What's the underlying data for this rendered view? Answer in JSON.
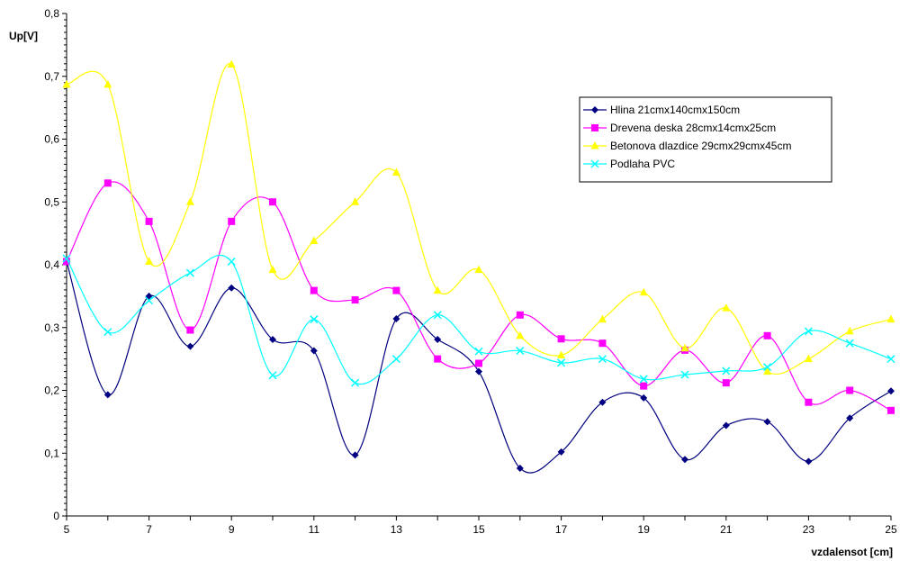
{
  "chart_data": {
    "type": "line",
    "smoothed": true,
    "xlabel": "vzdalensot [cm]",
    "ylabel": "Up[V]",
    "xlim": [
      5,
      25
    ],
    "ylim": [
      0,
      0.8
    ],
    "x_ticks_major": [
      5,
      7,
      9,
      11,
      13,
      15,
      17,
      19,
      21,
      23,
      25
    ],
    "y_ticks": [
      0,
      0.1,
      0.2,
      0.3,
      0.4,
      0.5,
      0.6,
      0.7,
      0.8
    ],
    "y_tick_labels": [
      "0",
      "0,1",
      "0,2",
      "0,3",
      "0,4",
      "0,5",
      "0,6",
      "0,7",
      "0,8"
    ],
    "x_tick_labels": [
      "5",
      "7",
      "9",
      "11",
      "13",
      "15",
      "17",
      "19",
      "21",
      "23",
      "25"
    ],
    "grid": false,
    "legend_position": "right",
    "x": [
      5,
      6,
      7,
      8,
      9,
      10,
      11,
      12,
      13,
      14,
      15,
      16,
      17,
      18,
      19,
      20,
      21,
      22,
      23,
      24,
      25
    ],
    "series": [
      {
        "name": "Hlina 21cmx140cmx150cm",
        "color": "#000080",
        "marker": "diamond",
        "values": [
          0.405,
          0.193,
          0.35,
          0.27,
          0.363,
          0.281,
          0.263,
          0.097,
          0.314,
          0.281,
          0.23,
          0.076,
          0.102,
          0.181,
          0.188,
          0.09,
          0.144,
          0.15,
          0.087,
          0.156,
          0.199
        ]
      },
      {
        "name": "Drevena deska 28cmx14cmx25cm",
        "color": "#FF00FF",
        "marker": "square",
        "values": [
          0.405,
          0.53,
          0.469,
          0.296,
          0.469,
          0.5,
          0.359,
          0.344,
          0.359,
          0.25,
          0.243,
          0.32,
          0.282,
          0.275,
          0.207,
          0.264,
          0.212,
          0.287,
          0.181,
          0.2,
          0.168
        ]
      },
      {
        "name": "Betonova dlazdice 29cmx29cmx45cm",
        "color": "#FFFF00",
        "marker": "triangle",
        "values": [
          0.687,
          0.687,
          0.405,
          0.5,
          0.719,
          0.392,
          0.438,
          0.5,
          0.547,
          0.359,
          0.392,
          0.287,
          0.256,
          0.313,
          0.356,
          0.267,
          0.331,
          0.23,
          0.25,
          0.294,
          0.313
        ]
      },
      {
        "name": "Podlaha PVC",
        "color": "#00FFFF",
        "marker": "x",
        "values": [
          0.41,
          0.293,
          0.343,
          0.387,
          0.405,
          0.224,
          0.313,
          0.212,
          0.25,
          0.32,
          0.262,
          0.263,
          0.244,
          0.25,
          0.218,
          0.225,
          0.231,
          0.237,
          0.294,
          0.275,
          0.25
        ]
      }
    ]
  }
}
